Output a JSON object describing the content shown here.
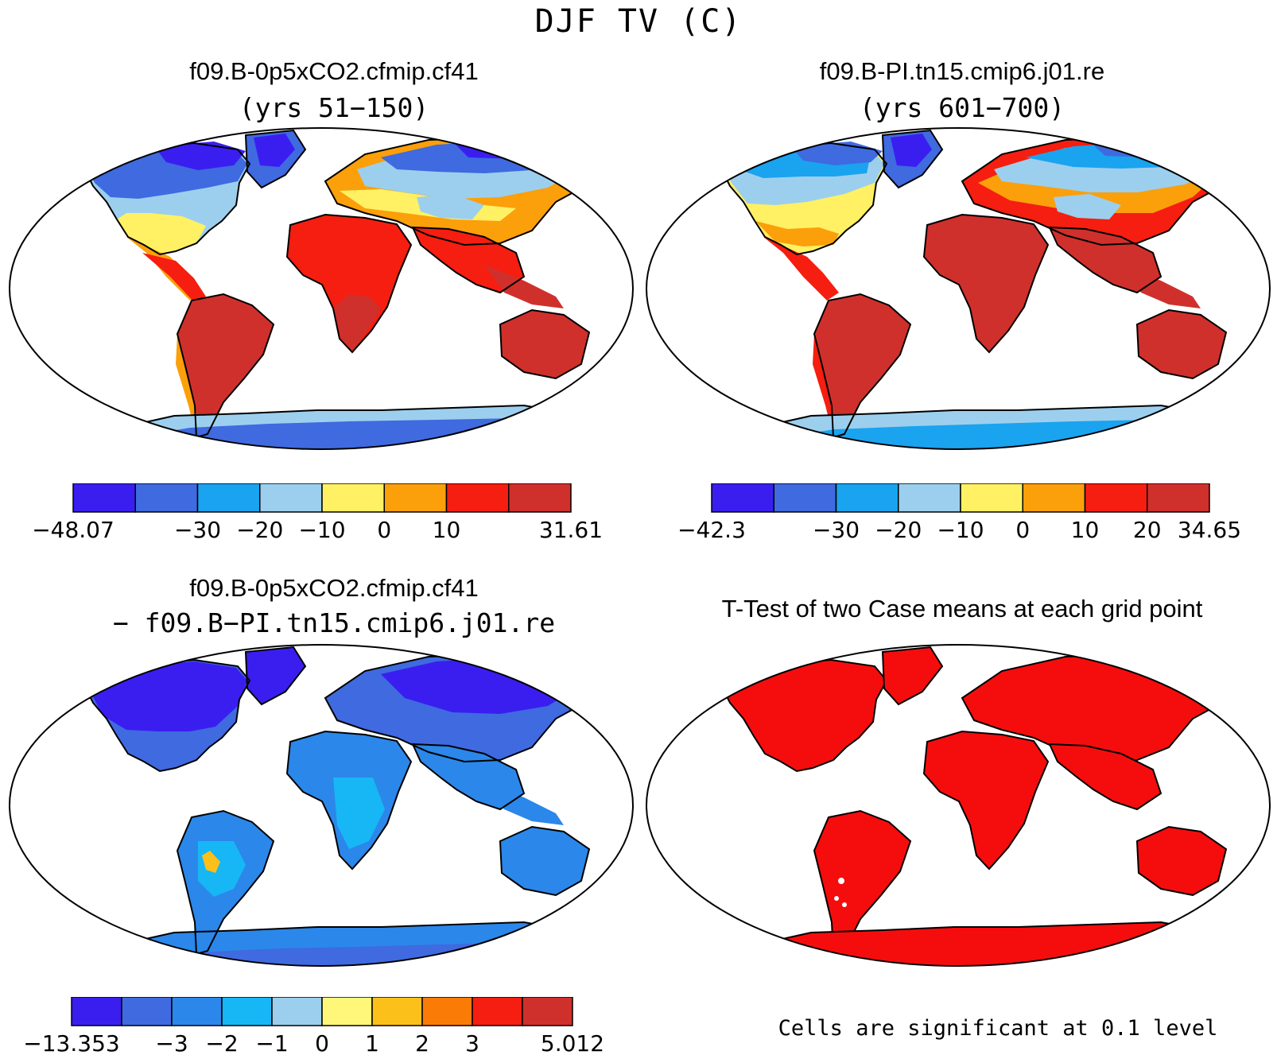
{
  "figure": {
    "title": "DJF TV (C)"
  },
  "panels": [
    {
      "title": "f09.B-0p5xCO2.cfmip.cf41",
      "subtitle": "(yrs 51−150)",
      "colorbar": {
        "colors": [
          "#3a1ef0",
          "#3f6ae0",
          "#1aa3ef",
          "#9ccfee",
          "#fff163",
          "#fb9f0a",
          "#f51e10",
          "#d0302c"
        ],
        "labels": [
          "−48.07",
          "−30",
          "−20",
          "−10",
          "0",
          "10",
          "31.61"
        ]
      }
    },
    {
      "title": "f09.B-PI.tn15.cmip6.j01.re",
      "subtitle": "(yrs 601−700)",
      "colorbar": {
        "colors": [
          "#3a1ef0",
          "#3f6ae0",
          "#1aa3ef",
          "#9ccfee",
          "#fff163",
          "#fb9f0a",
          "#f51e10",
          "#d0302c"
        ],
        "labels": [
          "−42.3",
          "−30",
          "−20",
          "−10",
          "0",
          "10",
          "20",
          "34.65"
        ]
      }
    },
    {
      "title": "f09.B-0p5xCO2.cfmip.cf41",
      "subtitle": "− f09.B−PI.tn15.cmip6.j01.re",
      "colorbar": {
        "colors": [
          "#3a1ef0",
          "#3f6ae0",
          "#2b87ea",
          "#17b6f5",
          "#9ccfee",
          "#fff77a",
          "#fcc01b",
          "#fb7b07",
          "#f51e10",
          "#d0302c"
        ],
        "labels": [
          "−13.353",
          "−3",
          "−2",
          "−1",
          "0",
          "1",
          "2",
          "3",
          "5.012"
        ]
      }
    },
    {
      "title": "T-Test of two Case means at each grid point",
      "footnote": "Cells are significant at 0.1 level"
    }
  ],
  "map_colors": {
    "land_outline": "#000000",
    "significant": "#f50d0d"
  }
}
